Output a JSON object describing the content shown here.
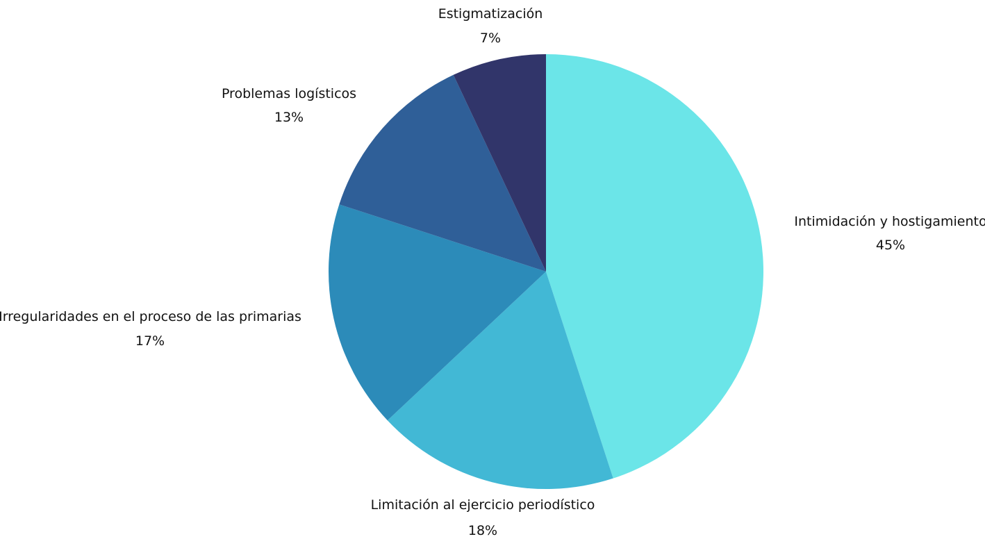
{
  "chart_data": {
    "type": "pie",
    "title": "",
    "start_angle_deg": 0,
    "direction": "clockwise",
    "slices": [
      {
        "label": "Intimidación y hostigamiento",
        "value": 45,
        "value_label": "45%",
        "color": "#6be5e8"
      },
      {
        "label": "Limitación al ejercicio periodístico",
        "value": 18,
        "value_label": "18%",
        "color": "#42b8d5"
      },
      {
        "label": "Irregularidades en el proceso de las primarias",
        "value": 17,
        "value_label": "17%",
        "color": "#2c8bb9"
      },
      {
        "label": "Problemas logísticos",
        "value": 13,
        "value_label": "13%",
        "color": "#2f5f98"
      },
      {
        "label": "Estigmatización",
        "value": 7,
        "value_label": "7%",
        "color": "#31356a"
      }
    ],
    "legend": "none",
    "labels": "outside"
  }
}
